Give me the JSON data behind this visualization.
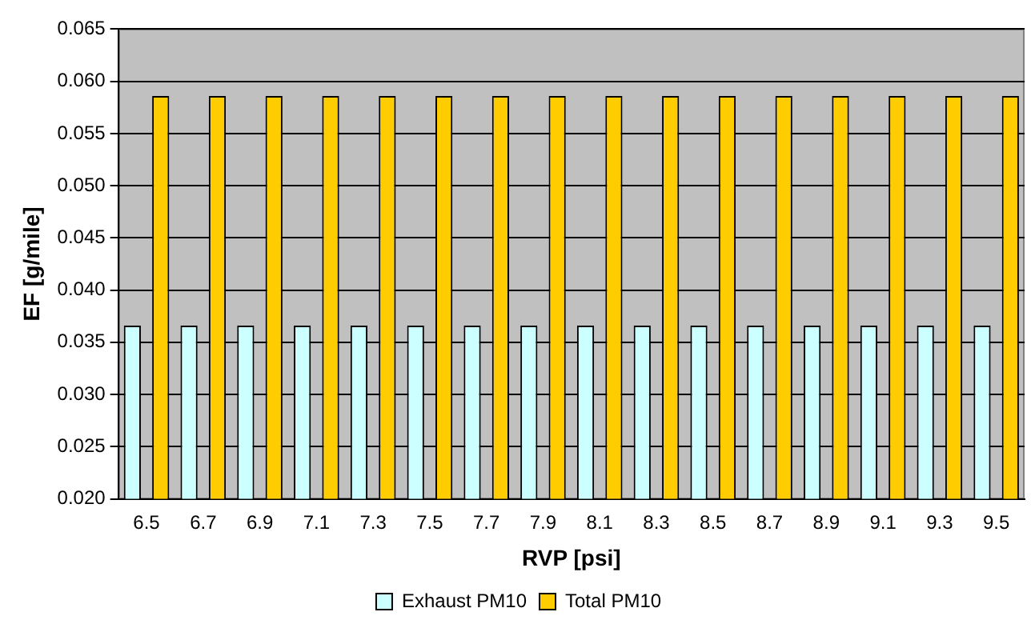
{
  "chart_data": {
    "type": "bar",
    "xlabel": "RVP [psi]",
    "ylabel": "EF [g/mile]",
    "categories": [
      "6.5",
      "6.7",
      "6.9",
      "7.1",
      "7.3",
      "7.5",
      "7.7",
      "7.9",
      "8.1",
      "8.3",
      "8.5",
      "8.7",
      "8.9",
      "9.1",
      "9.3",
      "9.5"
    ],
    "series": [
      {
        "name": "Exhaust PM10",
        "color": "#ccffff",
        "values": [
          0.0366,
          0.0366,
          0.0366,
          0.0366,
          0.0366,
          0.0366,
          0.0366,
          0.0366,
          0.0366,
          0.0366,
          0.0366,
          0.0366,
          0.0366,
          0.0366,
          0.0366,
          0.0366
        ]
      },
      {
        "name": "Total PM10",
        "color": "#ffcc00",
        "values": [
          0.0586,
          0.0586,
          0.0586,
          0.0586,
          0.0586,
          0.0586,
          0.0586,
          0.0586,
          0.0586,
          0.0586,
          0.0586,
          0.0586,
          0.0586,
          0.0586,
          0.0586,
          0.0586
        ]
      }
    ],
    "ylim": [
      0.02,
      0.065
    ],
    "yticks": [
      {
        "value": 0.02,
        "label": "0.020"
      },
      {
        "value": 0.025,
        "label": "0.025"
      },
      {
        "value": 0.03,
        "label": "0.030"
      },
      {
        "value": 0.035,
        "label": "0.035"
      },
      {
        "value": 0.04,
        "label": "0.040"
      },
      {
        "value": 0.045,
        "label": "0.045"
      },
      {
        "value": 0.05,
        "label": "0.050"
      },
      {
        "value": 0.055,
        "label": "0.055"
      },
      {
        "value": 0.06,
        "label": "0.060"
      },
      {
        "value": 0.065,
        "label": "0.065"
      }
    ],
    "grid": "y",
    "legend": "bottom"
  }
}
